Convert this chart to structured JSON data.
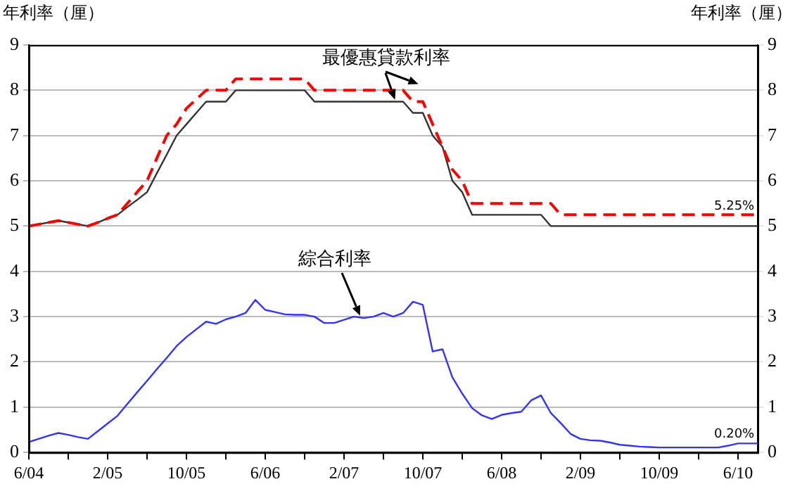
{
  "chart_data": {
    "type": "line",
    "ylabel": "年利率（厘）",
    "y2label": "年利率（厘）",
    "categories": [
      "6/04",
      null,
      null,
      null,
      null,
      null,
      null,
      null,
      "2/05",
      null,
      null,
      null,
      null,
      null,
      null,
      null,
      "10/05",
      null,
      null,
      null,
      null,
      null,
      null,
      null,
      "6/06",
      null,
      null,
      null,
      null,
      null,
      null,
      null,
      "2/07",
      null,
      null,
      null,
      null,
      null,
      null,
      null,
      "10/07",
      null,
      null,
      null,
      null,
      null,
      null,
      null,
      "6/08",
      null,
      null,
      null,
      null,
      null,
      null,
      null,
      "2/09",
      null,
      null,
      null,
      null,
      null,
      null,
      null,
      "10/09",
      null,
      null,
      null,
      null,
      null,
      null,
      null,
      "6/10",
      null,
      null
    ],
    "series": [
      {
        "color": "#ff0000",
        "line_style": "dashed",
        "values": [
          5,
          5.04,
          5.08,
          5.12,
          5.08,
          5.04,
          5,
          5.08,
          5.17,
          5.25,
          5.5,
          5.75,
          6,
          6.5,
          7,
          7.25,
          7.6,
          7.8,
          8,
          8,
          8,
          8.25,
          8.25,
          8.25,
          8.25,
          8.25,
          8.25,
          8.25,
          8.25,
          8,
          8,
          8,
          8,
          8,
          8,
          8,
          8,
          8,
          8,
          7.75,
          7.75,
          7.25,
          6.75,
          6.25,
          6,
          5.5,
          5.5,
          5.5,
          5.5,
          5.5,
          5.5,
          5.5,
          5.5,
          5.5,
          5.25,
          5.25,
          5.25,
          5.25,
          5.25,
          5.25,
          5.25,
          5.25,
          5.25,
          5.25,
          5.25,
          5.25,
          5.25,
          5.25,
          5.25,
          5.25,
          5.25,
          5.25,
          5.25,
          5.25,
          5.25
        ]
      },
      {
        "color": "#333333",
        "line_style": "solid",
        "values": [
          5,
          5.04,
          5.08,
          5.12,
          5.08,
          5.04,
          5,
          5.08,
          5.17,
          5.25,
          5.42,
          5.58,
          5.75,
          6.17,
          6.58,
          7,
          7.25,
          7.5,
          7.75,
          7.75,
          7.75,
          8,
          8,
          8,
          8,
          8,
          8,
          8,
          8,
          7.75,
          7.75,
          7.75,
          7.75,
          7.75,
          7.75,
          7.75,
          7.75,
          7.75,
          7.75,
          7.5,
          7.5,
          7,
          6.75,
          6,
          5.75,
          5.25,
          5.25,
          5.25,
          5.25,
          5.25,
          5.25,
          5.25,
          5.25,
          5,
          5,
          5,
          5,
          5,
          5,
          5,
          5,
          5,
          5,
          5,
          5,
          5,
          5,
          5,
          5,
          5,
          5,
          5,
          5,
          5,
          5
        ]
      },
      {
        "color": "#3333ff",
        "line_style": "solid",
        "values": [
          0.23,
          0.3,
          0.37,
          0.43,
          0.39,
          0.34,
          0.3,
          0.47,
          0.64,
          0.81,
          1.07,
          1.33,
          1.58,
          1.84,
          2.09,
          2.35,
          2.55,
          2.72,
          2.89,
          2.84,
          2.94,
          3,
          3.08,
          3.37,
          3.15,
          3.1,
          3.05,
          3.04,
          3.04,
          3,
          2.86,
          2.86,
          2.93,
          3,
          2.97,
          3,
          3.08,
          3,
          3.08,
          3.33,
          3.26,
          2.23,
          2.28,
          1.66,
          1.3,
          0.98,
          0.82,
          0.74,
          0.83,
          0.87,
          0.9,
          1.15,
          1.26,
          0.87,
          0.65,
          0.41,
          0.3,
          0.27,
          0.26,
          0.22,
          0.17,
          0.15,
          0.13,
          0.12,
          0.11,
          0.11,
          0.11,
          0.11,
          0.11,
          0.11,
          0.11,
          0.15,
          0.2,
          0.2,
          0.2
        ]
      }
    ],
    "ylim": [
      0,
      9
    ],
    "yticks": [
      0,
      1,
      2,
      3,
      4,
      5,
      6,
      7,
      8,
      9
    ],
    "y2lim": [
      0,
      9
    ],
    "y2ticks": [
      0,
      1,
      2,
      3,
      4,
      5,
      6,
      7,
      8,
      9
    ],
    "grid": "y",
    "annotations": [
      "最優惠貸款利率",
      "綜合利率",
      {
        "text": "5.25%",
        "y": 5.25
      },
      {
        "text": "0.20%",
        "y": 0.2
      }
    ]
  }
}
